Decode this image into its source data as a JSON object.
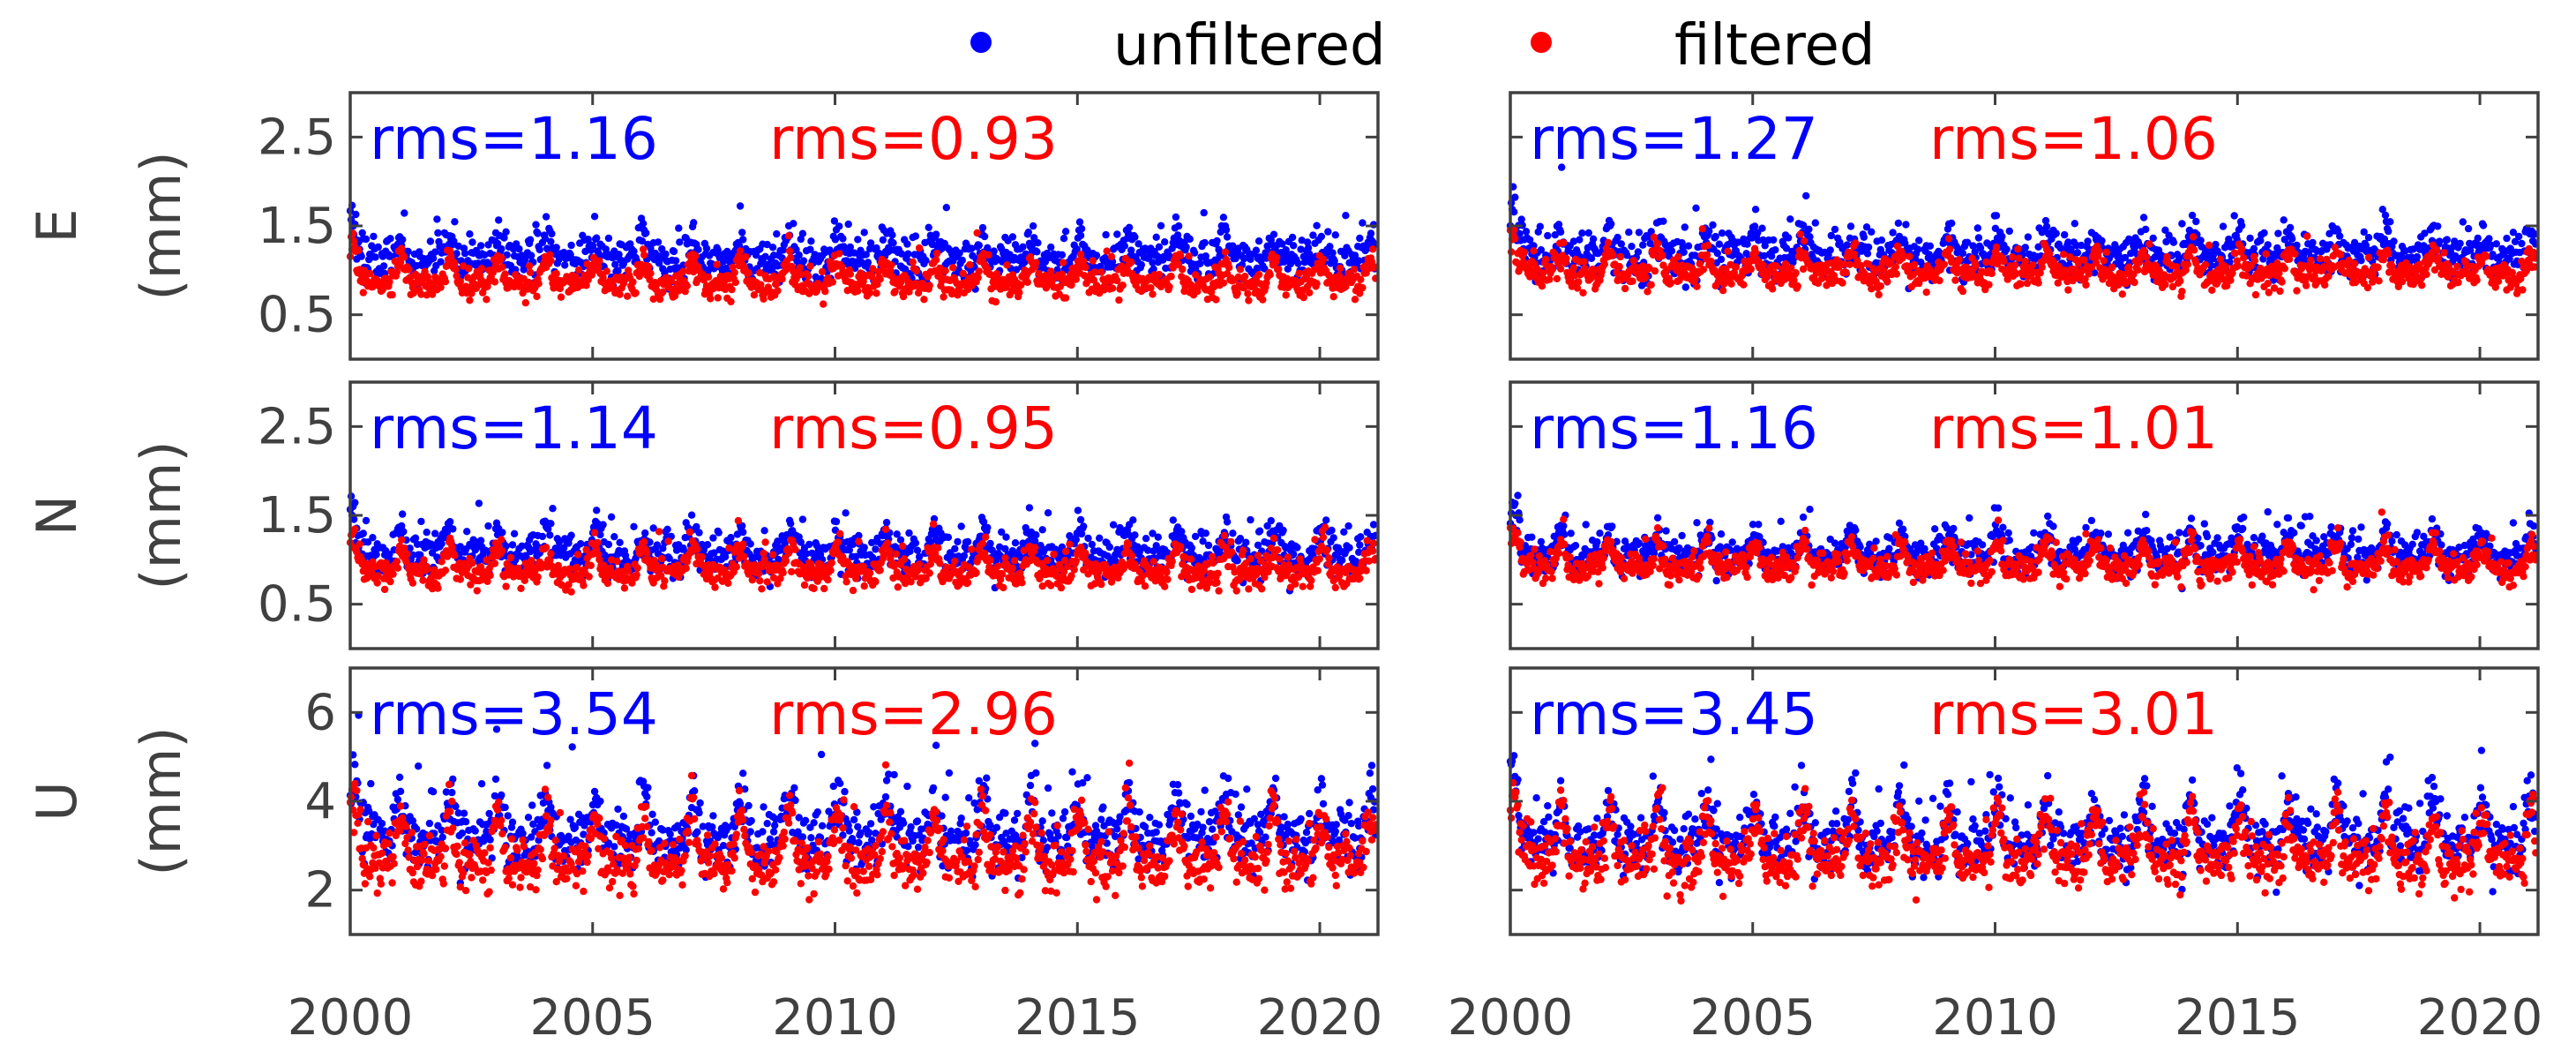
{
  "legend": {
    "unfiltered_label": "unfiltered",
    "filtered_label": "filtered"
  },
  "colors": {
    "unfiltered": "#0000ff",
    "filtered": "#ff0000",
    "axes": "#404040"
  },
  "chart_data": [
    {
      "type": "scatter",
      "row": "E",
      "col": 0,
      "component_label": "E",
      "unit_label": "(mm)",
      "xlim": [
        2000,
        2021.2
      ],
      "ylim": [
        0,
        3
      ],
      "xticks": [
        2000,
        2005,
        2010,
        2015,
        2020
      ],
      "yticks": [
        0.5,
        1.5,
        2.5
      ],
      "ytick_labels": [
        "0.5",
        "1.5",
        "2.5"
      ],
      "series": [
        {
          "name": "unfiltered",
          "rms_text": "rms=1.16",
          "baseline": 1.18,
          "seasonal_amp": 0.12,
          "noise": 0.12,
          "spike_amp": 0.45,
          "start_boost": 0.35
        },
        {
          "name": "filtered",
          "rms_text": "rms=0.93",
          "baseline": 0.92,
          "seasonal_amp": 0.13,
          "noise": 0.08,
          "spike_amp": 0.3,
          "start_boost": 0.3
        }
      ]
    },
    {
      "type": "scatter",
      "row": "E",
      "col": 1,
      "xlim": [
        2000,
        2021.2
      ],
      "ylim": [
        0,
        3
      ],
      "xticks": [
        2000,
        2005,
        2010,
        2015,
        2020
      ],
      "series": [
        {
          "name": "unfiltered",
          "rms_text": "rms=1.27",
          "baseline": 1.22,
          "seasonal_amp": 0.12,
          "noise": 0.13,
          "spike_amp": 0.5,
          "start_boost": 0.45
        },
        {
          "name": "filtered",
          "rms_text": "rms=1.06",
          "baseline": 1.02,
          "seasonal_amp": 0.12,
          "noise": 0.08,
          "spike_amp": 0.3,
          "start_boost": 0.3
        }
      ]
    },
    {
      "type": "scatter",
      "row": "N",
      "col": 0,
      "component_label": "N",
      "unit_label": "(mm)",
      "xlim": [
        2000,
        2021.2
      ],
      "ylim": [
        0,
        3
      ],
      "xticks": [
        2000,
        2005,
        2010,
        2015,
        2020
      ],
      "yticks": [
        0.5,
        1.5,
        2.5
      ],
      "ytick_labels": [
        "0.5",
        "1.5",
        "2.5"
      ],
      "series": [
        {
          "name": "unfiltered",
          "rms_text": "rms=1.14",
          "baseline": 1.12,
          "seasonal_amp": 0.13,
          "noise": 0.12,
          "spike_amp": 0.4,
          "start_boost": 0.45
        },
        {
          "name": "filtered",
          "rms_text": "rms=0.95",
          "baseline": 0.93,
          "seasonal_amp": 0.14,
          "noise": 0.08,
          "spike_amp": 0.3,
          "start_boost": 0.3
        }
      ]
    },
    {
      "type": "scatter",
      "row": "N",
      "col": 1,
      "xlim": [
        2000,
        2021.2
      ],
      "ylim": [
        0,
        3
      ],
      "xticks": [
        2000,
        2005,
        2010,
        2015,
        2020
      ],
      "series": [
        {
          "name": "unfiltered",
          "rms_text": "rms=1.16",
          "baseline": 1.12,
          "seasonal_amp": 0.13,
          "noise": 0.11,
          "spike_amp": 0.4,
          "start_boost": 0.45
        },
        {
          "name": "filtered",
          "rms_text": "rms=1.01",
          "baseline": 0.98,
          "seasonal_amp": 0.14,
          "noise": 0.08,
          "spike_amp": 0.3,
          "start_boost": 0.3
        }
      ]
    },
    {
      "type": "scatter",
      "row": "U",
      "col": 0,
      "component_label": "U",
      "unit_label": "(mm)",
      "xlim": [
        2000,
        2021.2
      ],
      "ylim": [
        1,
        7
      ],
      "xticks": [
        2000,
        2005,
        2010,
        2015,
        2020
      ],
      "yticks": [
        2,
        4,
        6
      ],
      "ytick_labels": [
        "2",
        "4",
        "6"
      ],
      "series": [
        {
          "name": "unfiltered",
          "rms_text": "rms=3.54",
          "baseline": 3.4,
          "seasonal_amp": 0.5,
          "noise": 0.35,
          "spike_amp": 1.4,
          "start_boost": 1.3
        },
        {
          "name": "filtered",
          "rms_text": "rms=2.96",
          "baseline": 2.9,
          "seasonal_amp": 0.55,
          "noise": 0.28,
          "spike_amp": 1.0,
          "start_boost": 1.1
        }
      ]
    },
    {
      "type": "scatter",
      "row": "U",
      "col": 1,
      "xlim": [
        2000,
        2021.2
      ],
      "ylim": [
        1,
        7
      ],
      "xticks": [
        2000,
        2005,
        2010,
        2015,
        2020
      ],
      "series": [
        {
          "name": "unfiltered",
          "rms_text": "rms=3.45",
          "baseline": 3.3,
          "seasonal_amp": 0.5,
          "noise": 0.33,
          "spike_amp": 1.3,
          "start_boost": 1.3
        },
        {
          "name": "filtered",
          "rms_text": "rms=3.01",
          "baseline": 2.95,
          "seasonal_amp": 0.55,
          "noise": 0.28,
          "spike_amp": 1.0,
          "start_boost": 1.1
        }
      ]
    }
  ]
}
